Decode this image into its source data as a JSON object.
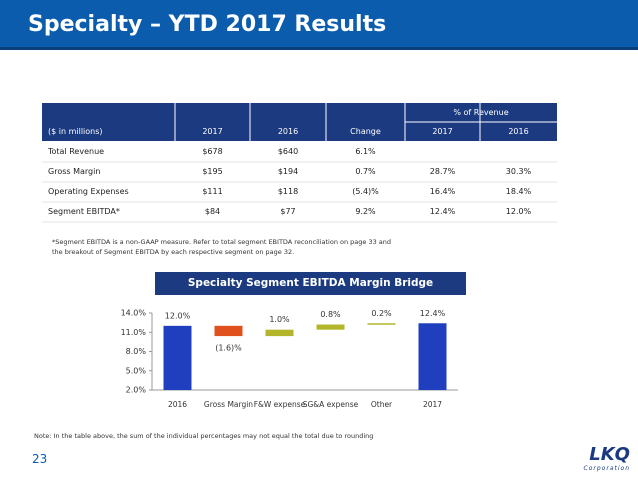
{
  "header": {
    "title": "Specialty – YTD 2017 Results"
  },
  "table": {
    "group_header": "% of Revenue",
    "columns": [
      "($ in millions)",
      "2017",
      "2016",
      "Change",
      "2017",
      "2016"
    ],
    "rows": [
      [
        "Total Revenue",
        "$678",
        "$640",
        "6.1%",
        "",
        ""
      ],
      [
        "Gross Margin",
        "$195",
        "$194",
        "0.7%",
        "28.7%",
        "30.3%"
      ],
      [
        "Operating Expenses",
        "$111",
        "$118",
        "(5.4)%",
        "16.4%",
        "18.4%"
      ],
      [
        "Segment EBITDA*",
        "$84",
        "$77",
        "9.2%",
        "12.4%",
        "12.0%"
      ]
    ]
  },
  "footnote": "*Segment EBITDA is a non-GAAP measure. Refer to total segment EBITDA reconciliation on page 33 and the breakout of Segment EBITDA by each respective segment on page 32.",
  "chart_data": {
    "type": "waterfall",
    "title": "Specialty Segment EBITDA Margin Bridge",
    "categories": [
      "2016",
      "Gross Margin",
      "F&W expense",
      "SG&A expense",
      "Other",
      "2017"
    ],
    "values": [
      12.0,
      -1.6,
      1.0,
      0.8,
      0.2,
      12.4
    ],
    "value_labels": [
      "12.0%",
      "(1.6)%",
      "1.0%",
      "0.8%",
      "0.2%",
      "12.4%"
    ],
    "is_total": [
      true,
      false,
      false,
      false,
      false,
      true
    ],
    "total_color": "#1f3fbf",
    "increase_color": "#b3b62a",
    "decrease_color": "#e0501c",
    "ylim": [
      2,
      14
    ],
    "yticks": [
      {
        "value": 2,
        "label": "2.0%"
      },
      {
        "value": 5,
        "label": "5.0%"
      },
      {
        "value": 8,
        "label": "8.0%"
      },
      {
        "value": 11,
        "label": "11.0%"
      },
      {
        "value": 14,
        "label": "14.0%"
      }
    ]
  },
  "note": "Note: In the table above, the sum of the individual percentages may not equal the total due to rounding",
  "page_number": "23",
  "logo": {
    "name": "LKQ",
    "sub": "Corporation"
  }
}
